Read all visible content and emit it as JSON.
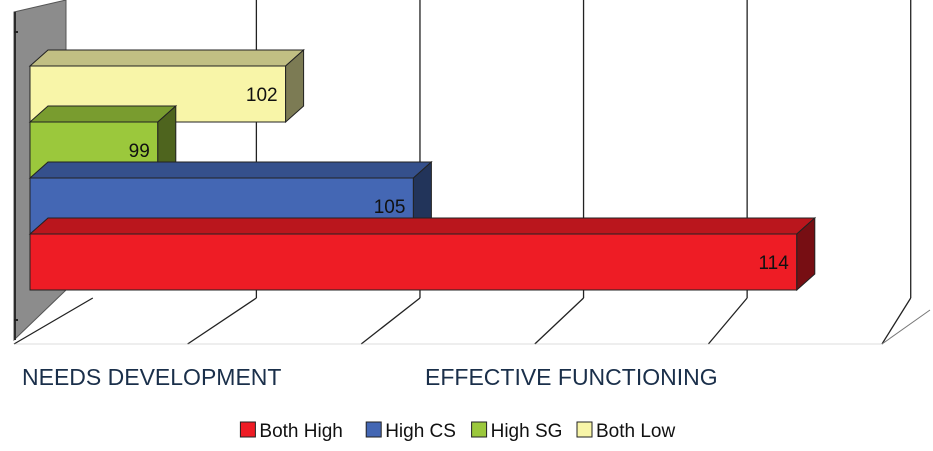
{
  "chart_data": {
    "type": "bar",
    "orientation": "horizontal",
    "three_d": true,
    "grid": true,
    "legend_position": "bottom",
    "title": "",
    "xlabel": "",
    "ylabel": "",
    "xlim": [
      96,
      116
    ],
    "x_axis_labels": [
      "NEEDS DEVELOPMENT",
      "EFFECTIVE FUNCTIONING"
    ],
    "series": [
      {
        "name": "Both High",
        "value": 114,
        "color": "#ee1c25"
      },
      {
        "name": "High CS",
        "value": 105,
        "color": "#4467b4"
      },
      {
        "name": "High SG",
        "value": 99,
        "color": "#9bc83c"
      },
      {
        "name": "Both Low",
        "value": 102,
        "color": "#f8f5a8"
      }
    ]
  }
}
